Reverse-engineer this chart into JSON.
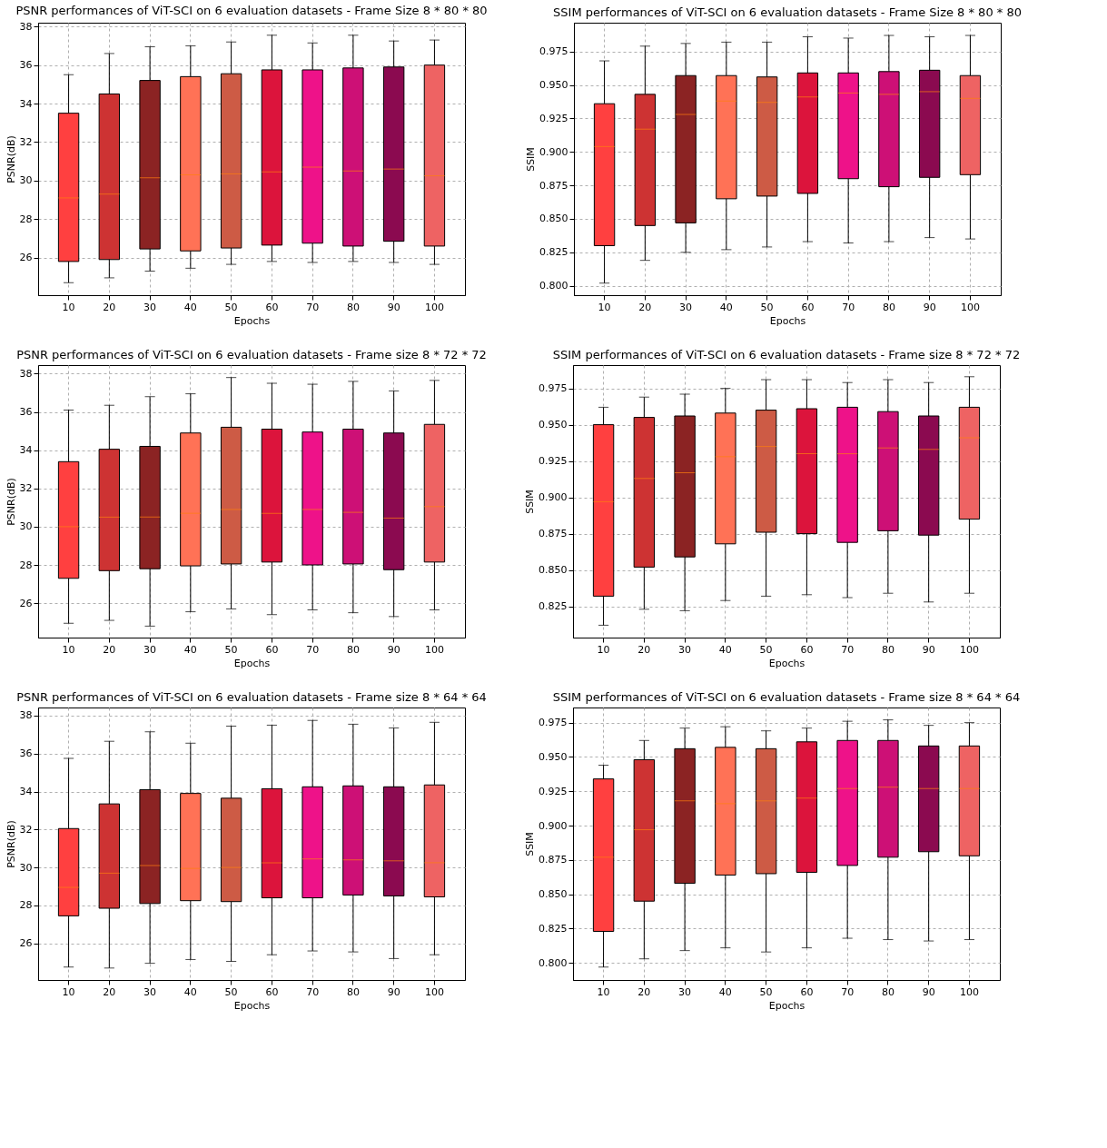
{
  "chart_data": [
    {
      "type": "box",
      "title": "PSNR performances of ViT-SCI on 6 evaluation datasets - Frame Size 8 * 80 * 80",
      "xlabel": "Epochs",
      "ylabel": "PSNR(dB)",
      "grid": true,
      "categories": [
        "10",
        "20",
        "30",
        "40",
        "50",
        "60",
        "70",
        "80",
        "90",
        "100"
      ],
      "colors": [
        "#ff4040",
        "#cd3333",
        "#8b2323",
        "#ff7256",
        "#cd5b45",
        "#dc143c",
        "#ee1289",
        "#cd1076",
        "#8b0a50",
        "#ee6363"
      ],
      "ylim": [
        24.05,
        38.2
      ],
      "yticks": [
        26,
        28,
        30,
        32,
        34,
        36,
        38
      ],
      "boxes": [
        {
          "low": 24.7,
          "q1": 25.8,
          "median": 29.1,
          "q3": 33.5,
          "high": 35.5
        },
        {
          "low": 24.95,
          "q1": 25.9,
          "median": 29.3,
          "q3": 34.5,
          "high": 36.6
        },
        {
          "low": 25.3,
          "q1": 26.45,
          "median": 30.15,
          "q3": 35.2,
          "high": 36.95
        },
        {
          "low": 25.45,
          "q1": 26.35,
          "median": 30.3,
          "q3": 35.4,
          "high": 37.0
        },
        {
          "low": 25.65,
          "q1": 26.5,
          "median": 30.35,
          "q3": 35.55,
          "high": 37.2
        },
        {
          "low": 25.8,
          "q1": 26.65,
          "median": 30.45,
          "q3": 35.75,
          "high": 37.55
        },
        {
          "low": 25.75,
          "q1": 26.75,
          "median": 30.7,
          "q3": 35.75,
          "high": 37.15
        },
        {
          "low": 25.8,
          "q1": 26.6,
          "median": 30.5,
          "q3": 35.85,
          "high": 37.55
        },
        {
          "low": 25.75,
          "q1": 26.85,
          "median": 30.6,
          "q3": 35.9,
          "high": 37.25
        },
        {
          "low": 25.65,
          "q1": 26.6,
          "median": 30.25,
          "q3": 36.0,
          "high": 37.3
        }
      ]
    },
    {
      "type": "box",
      "title": "SSIM performances of ViT-SCI on 6 evaluation datasets - Frame Size 8 * 80 * 80",
      "xlabel": "Epochs",
      "ylabel": "SSIM",
      "grid": true,
      "categories": [
        "10",
        "20",
        "30",
        "40",
        "50",
        "60",
        "70",
        "80",
        "90",
        "100"
      ],
      "colors": [
        "#ff4040",
        "#cd3333",
        "#8b2323",
        "#ff7256",
        "#cd5b45",
        "#dc143c",
        "#ee1289",
        "#cd1076",
        "#8b0a50",
        "#ee6363"
      ],
      "ylim": [
        0.793,
        0.9965
      ],
      "yticks": [
        {
          "value": 0.8,
          "label": "0.800"
        },
        {
          "value": 0.825,
          "label": "0.825"
        },
        {
          "value": 0.85,
          "label": "0.850"
        },
        {
          "value": 0.875,
          "label": "0.875"
        },
        {
          "value": 0.9,
          "label": "0.900"
        },
        {
          "value": 0.925,
          "label": "0.925"
        },
        {
          "value": 0.95,
          "label": "0.950"
        },
        {
          "value": 0.975,
          "label": "0.975"
        }
      ],
      "boxes": [
        {
          "low": 0.802,
          "q1": 0.83,
          "median": 0.904,
          "q3": 0.936,
          "high": 0.968
        },
        {
          "low": 0.819,
          "q1": 0.845,
          "median": 0.917,
          "q3": 0.943,
          "high": 0.979
        },
        {
          "low": 0.825,
          "q1": 0.847,
          "median": 0.928,
          "q3": 0.957,
          "high": 0.981
        },
        {
          "low": 0.827,
          "q1": 0.865,
          "median": 0.938,
          "q3": 0.957,
          "high": 0.982
        },
        {
          "low": 0.829,
          "q1": 0.867,
          "median": 0.937,
          "q3": 0.956,
          "high": 0.982
        },
        {
          "low": 0.833,
          "q1": 0.869,
          "median": 0.941,
          "q3": 0.959,
          "high": 0.986
        },
        {
          "low": 0.832,
          "q1": 0.88,
          "median": 0.944,
          "q3": 0.959,
          "high": 0.985
        },
        {
          "low": 0.833,
          "q1": 0.874,
          "median": 0.943,
          "q3": 0.96,
          "high": 0.987
        },
        {
          "low": 0.836,
          "q1": 0.881,
          "median": 0.945,
          "q3": 0.961,
          "high": 0.986
        },
        {
          "low": 0.835,
          "q1": 0.883,
          "median": 0.94,
          "q3": 0.957,
          "high": 0.987
        }
      ]
    },
    {
      "type": "box",
      "title": "PSNR performances of ViT-SCI on 6 evaluation datasets - Frame size 8 * 72 * 72",
      "xlabel": "Epochs",
      "ylabel": "PSNR(dB)",
      "grid": true,
      "categories": [
        "10",
        "20",
        "30",
        "40",
        "50",
        "60",
        "70",
        "80",
        "90",
        "100"
      ],
      "colors": [
        "#ff4040",
        "#cd3333",
        "#8b2323",
        "#ff7256",
        "#cd5b45",
        "#dc143c",
        "#ee1289",
        "#cd1076",
        "#8b0a50",
        "#ee6363"
      ],
      "ylim": [
        24.2,
        38.45
      ],
      "yticks": [
        26,
        28,
        30,
        32,
        34,
        36,
        38
      ],
      "boxes": [
        {
          "low": 24.95,
          "q1": 27.3,
          "median": 30.0,
          "q3": 33.4,
          "high": 36.1
        },
        {
          "low": 25.1,
          "q1": 27.7,
          "median": 30.5,
          "q3": 34.05,
          "high": 36.35
        },
        {
          "low": 24.8,
          "q1": 27.8,
          "median": 30.5,
          "q3": 34.2,
          "high": 36.8
        },
        {
          "low": 25.55,
          "q1": 27.95,
          "median": 30.7,
          "q3": 34.9,
          "high": 36.95
        },
        {
          "low": 25.7,
          "q1": 28.05,
          "median": 30.9,
          "q3": 35.2,
          "high": 37.8
        },
        {
          "low": 25.4,
          "q1": 28.15,
          "median": 30.7,
          "q3": 35.1,
          "high": 37.5
        },
        {
          "low": 25.65,
          "q1": 28.0,
          "median": 30.9,
          "q3": 34.95,
          "high": 37.45
        },
        {
          "low": 25.5,
          "q1": 28.05,
          "median": 30.75,
          "q3": 35.1,
          "high": 37.6
        },
        {
          "low": 25.3,
          "q1": 27.75,
          "median": 30.45,
          "q3": 34.9,
          "high": 37.1
        },
        {
          "low": 25.65,
          "q1": 28.15,
          "median": 31.05,
          "q3": 35.35,
          "high": 37.65
        }
      ]
    },
    {
      "type": "box",
      "title": "SSIM performances of ViT-SCI on 6 evaluation datasets - Frame size 8 * 72 * 72",
      "xlabel": "Epochs",
      "ylabel": "SSIM",
      "grid": true,
      "categories": [
        "10",
        "20",
        "30",
        "40",
        "50",
        "60",
        "70",
        "80",
        "90",
        "100"
      ],
      "colors": [
        "#ff4040",
        "#cd3333",
        "#8b2323",
        "#ff7256",
        "#cd5b45",
        "#dc143c",
        "#ee1289",
        "#cd1076",
        "#8b0a50",
        "#ee6363"
      ],
      "ylim": [
        0.8035,
        0.991
      ],
      "yticks": [
        {
          "value": 0.825,
          "label": "0.825"
        },
        {
          "value": 0.85,
          "label": "0.850"
        },
        {
          "value": 0.875,
          "label": "0.875"
        },
        {
          "value": 0.9,
          "label": "0.900"
        },
        {
          "value": 0.925,
          "label": "0.925"
        },
        {
          "value": 0.95,
          "label": "0.950"
        },
        {
          "value": 0.975,
          "label": "0.975"
        }
      ],
      "boxes": [
        {
          "low": 0.812,
          "q1": 0.832,
          "median": 0.897,
          "q3": 0.95,
          "high": 0.962
        },
        {
          "low": 0.823,
          "q1": 0.852,
          "median": 0.913,
          "q3": 0.955,
          "high": 0.969
        },
        {
          "low": 0.822,
          "q1": 0.859,
          "median": 0.917,
          "q3": 0.956,
          "high": 0.971
        },
        {
          "low": 0.829,
          "q1": 0.868,
          "median": 0.928,
          "q3": 0.958,
          "high": 0.975
        },
        {
          "low": 0.832,
          "q1": 0.876,
          "median": 0.935,
          "q3": 0.96,
          "high": 0.981
        },
        {
          "low": 0.833,
          "q1": 0.875,
          "median": 0.93,
          "q3": 0.961,
          "high": 0.981
        },
        {
          "low": 0.831,
          "q1": 0.869,
          "median": 0.93,
          "q3": 0.962,
          "high": 0.979
        },
        {
          "low": 0.834,
          "q1": 0.877,
          "median": 0.934,
          "q3": 0.959,
          "high": 0.981
        },
        {
          "low": 0.828,
          "q1": 0.874,
          "median": 0.933,
          "q3": 0.956,
          "high": 0.979
        },
        {
          "low": 0.834,
          "q1": 0.885,
          "median": 0.941,
          "q3": 0.962,
          "high": 0.983
        }
      ]
    },
    {
      "type": "box",
      "title": "PSNR performances of ViT-SCI on 6 evaluation datasets - Frame size 8 * 64 * 64",
      "xlabel": "Epochs",
      "ylabel": "PSNR(dB)",
      "grid": true,
      "categories": [
        "10",
        "20",
        "30",
        "40",
        "50",
        "60",
        "70",
        "80",
        "90",
        "100"
      ],
      "colors": [
        "#ff4040",
        "#cd3333",
        "#8b2323",
        "#ff7256",
        "#cd5b45",
        "#dc143c",
        "#ee1289",
        "#cd1076",
        "#8b0a50",
        "#ee6363"
      ],
      "ylim": [
        24.07,
        38.43
      ],
      "yticks": [
        26,
        28,
        30,
        32,
        34,
        36,
        38
      ],
      "boxes": [
        {
          "low": 24.75,
          "q1": 27.45,
          "median": 28.95,
          "q3": 32.05,
          "high": 35.75
        },
        {
          "low": 24.7,
          "q1": 27.85,
          "median": 29.7,
          "q3": 33.35,
          "high": 36.65
        },
        {
          "low": 24.95,
          "q1": 28.1,
          "median": 30.1,
          "q3": 34.1,
          "high": 37.15
        },
        {
          "low": 25.15,
          "q1": 28.25,
          "median": 29.95,
          "q3": 33.9,
          "high": 36.55
        },
        {
          "low": 25.05,
          "q1": 28.2,
          "median": 30.0,
          "q3": 33.65,
          "high": 37.45
        },
        {
          "low": 25.4,
          "q1": 28.4,
          "median": 30.25,
          "q3": 34.15,
          "high": 37.5
        },
        {
          "low": 25.6,
          "q1": 28.4,
          "median": 30.45,
          "q3": 34.25,
          "high": 37.75
        },
        {
          "low": 25.55,
          "q1": 28.55,
          "median": 30.4,
          "q3": 34.3,
          "high": 37.55
        },
        {
          "low": 25.2,
          "q1": 28.5,
          "median": 30.35,
          "q3": 34.25,
          "high": 37.35
        },
        {
          "low": 25.4,
          "q1": 28.45,
          "median": 30.25,
          "q3": 34.35,
          "high": 37.65
        }
      ]
    },
    {
      "type": "box",
      "title": "SSIM performances of ViT-SCI on 6 evaluation datasets - Frame size 8 * 64 * 64",
      "xlabel": "Epochs",
      "ylabel": "SSIM",
      "grid": true,
      "categories": [
        "10",
        "20",
        "30",
        "40",
        "50",
        "60",
        "70",
        "80",
        "90",
        "100"
      ],
      "colors": [
        "#ff4040",
        "#cd3333",
        "#8b2323",
        "#ff7256",
        "#cd5b45",
        "#dc143c",
        "#ee1289",
        "#cd1076",
        "#8b0a50",
        "#ee6363"
      ],
      "ylim": [
        0.7876,
        0.986
      ],
      "yticks": [
        {
          "value": 0.8,
          "label": "0.800"
        },
        {
          "value": 0.825,
          "label": "0.825"
        },
        {
          "value": 0.85,
          "label": "0.850"
        },
        {
          "value": 0.875,
          "label": "0.875"
        },
        {
          "value": 0.9,
          "label": "0.900"
        },
        {
          "value": 0.925,
          "label": "0.925"
        },
        {
          "value": 0.95,
          "label": "0.950"
        },
        {
          "value": 0.975,
          "label": "0.975"
        }
      ],
      "boxes": [
        {
          "low": 0.797,
          "q1": 0.823,
          "median": 0.877,
          "q3": 0.934,
          "high": 0.944
        },
        {
          "low": 0.803,
          "q1": 0.845,
          "median": 0.897,
          "q3": 0.948,
          "high": 0.962
        },
        {
          "low": 0.809,
          "q1": 0.858,
          "median": 0.918,
          "q3": 0.956,
          "high": 0.971
        },
        {
          "low": 0.811,
          "q1": 0.864,
          "median": 0.916,
          "q3": 0.957,
          "high": 0.972
        },
        {
          "low": 0.808,
          "q1": 0.865,
          "median": 0.918,
          "q3": 0.956,
          "high": 0.969
        },
        {
          "low": 0.811,
          "q1": 0.866,
          "median": 0.92,
          "q3": 0.961,
          "high": 0.971
        },
        {
          "low": 0.818,
          "q1": 0.871,
          "median": 0.927,
          "q3": 0.962,
          "high": 0.976
        },
        {
          "low": 0.817,
          "q1": 0.877,
          "median": 0.928,
          "q3": 0.962,
          "high": 0.977
        },
        {
          "low": 0.816,
          "q1": 0.881,
          "median": 0.927,
          "q3": 0.958,
          "high": 0.973
        },
        {
          "low": 0.817,
          "q1": 0.878,
          "median": 0.927,
          "q3": 0.958,
          "high": 0.975
        }
      ]
    }
  ]
}
